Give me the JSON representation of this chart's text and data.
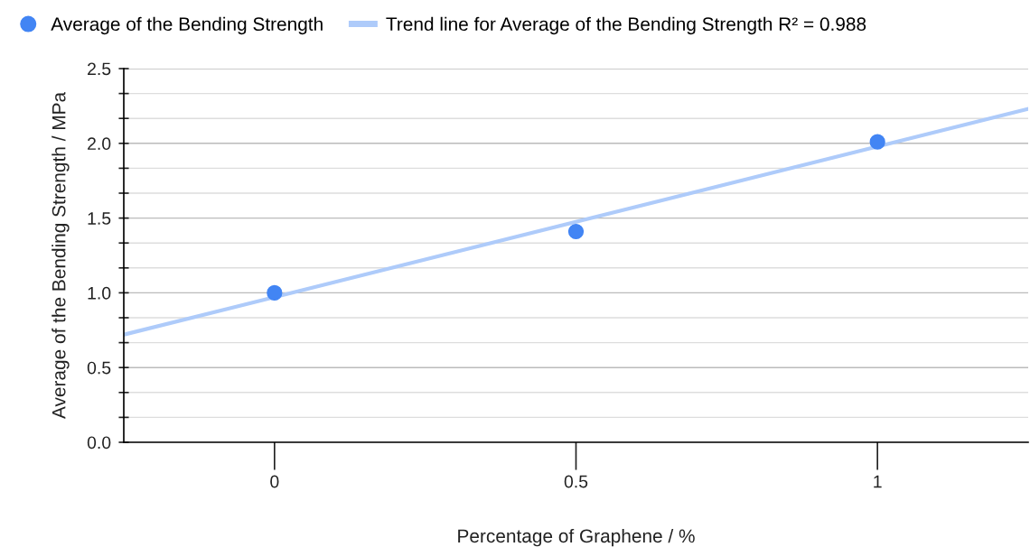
{
  "chart_data": {
    "type": "scatter",
    "xlabel": "Percentage of Graphene / %",
    "ylabel": "Average of the Bending Strength / MPa",
    "series": [
      {
        "name": "Average of the Bending Strength",
        "color": "#4285f4",
        "x": [
          0,
          0.5,
          1
        ],
        "values": [
          1.0,
          1.41,
          2.01
        ],
        "marker": "circle"
      },
      {
        "name": "Trend line for Average of the Bending Strength R² = 0.988",
        "type": "line",
        "color": "#aecbfa",
        "x": [
          -0.25,
          1.25
        ],
        "values": [
          0.72,
          2.23
        ],
        "marker": "none",
        "line_style": "solid"
      }
    ],
    "xlim": [
      -0.25,
      1.25
    ],
    "xticks": [
      {
        "value": 0,
        "label": "0"
      },
      {
        "value": 0.5,
        "label": "0.5"
      },
      {
        "value": 1,
        "label": "1"
      }
    ],
    "ylim": [
      0,
      2.5
    ],
    "yticks": [
      {
        "value": 0,
        "label": "0.0"
      },
      {
        "value": 0.1667,
        "label": null
      },
      {
        "value": 0.3333,
        "label": null
      },
      {
        "value": 0.5,
        "label": "0.5"
      },
      {
        "value": 0.6667,
        "label": null
      },
      {
        "value": 0.8333,
        "label": null
      },
      {
        "value": 1,
        "label": "1.0"
      },
      {
        "value": 1.1667,
        "label": null
      },
      {
        "value": 1.3333,
        "label": null
      },
      {
        "value": 1.5,
        "label": "1.5"
      },
      {
        "value": 1.6667,
        "label": null
      },
      {
        "value": 1.8333,
        "label": null
      },
      {
        "value": 2,
        "label": "2.0"
      },
      {
        "value": 2.1667,
        "label": null
      },
      {
        "value": 2.3333,
        "label": null
      },
      {
        "value": 2.5,
        "label": "2.5"
      }
    ],
    "grid": "y",
    "legend": "top left"
  }
}
